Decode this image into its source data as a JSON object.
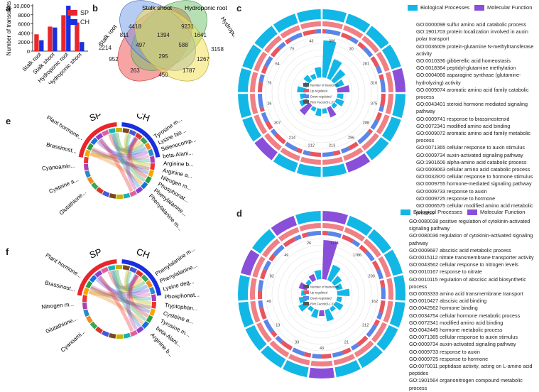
{
  "panels": {
    "a": "a",
    "b": "b",
    "c": "c",
    "d": "d",
    "e": "e",
    "f": "f"
  },
  "chart_data": [
    {
      "type": "bar",
      "panel": "a",
      "ylabel": "Number of transcripts",
      "categories": [
        "Stalk root",
        "Stalk shoot",
        "Hydroponic root",
        "Hydroponic shoot"
      ],
      "series": [
        {
          "name": "SP",
          "color": "#e8262b",
          "values": [
            3700,
            5400,
            7900,
            6300
          ]
        },
        {
          "name": "CH",
          "color": "#1a2fe0",
          "values": [
            2400,
            5200,
            10000,
            2000
          ]
        }
      ],
      "ylim": [
        0,
        10000
      ],
      "yticks": [
        "0",
        "2000",
        "4000",
        "6000",
        "8000",
        "10,000"
      ]
    },
    {
      "type": "venn",
      "panel": "b",
      "sets": [
        "Stalk root",
        "Stalk shoot",
        "Hydroponic root",
        "Hydroponic shoot"
      ],
      "regions": [
        "4418",
        "9231",
        "2214",
        "3158",
        "811",
        "1394",
        "1641",
        "497",
        "588",
        "952",
        "295",
        "1267",
        "263",
        "1787",
        "450"
      ]
    }
  ],
  "panel_c": {
    "legend": {
      "bio": "Biological Processes",
      "mol": "Molecular Function"
    },
    "inner_legend": [
      "Number of transcripts",
      "Up-regulated",
      "Down-regulated",
      "Rich Factor(0-1.0)"
    ],
    "go_terms": [
      "GO:0000098 sulfur amino acid catabolic process",
      "GO:1901703 protein localization involved in auxin polar transport",
      "GO:0036009 protein-glutamine N-methyltransferase activity",
      "GO:0010336 gibberellic acid homeostasis",
      "GO:0018364 peptidyl-glutamine methylation",
      "GO:0004066 asparagine synthase (glutamine-hydrolyzing) activity",
      "GO:0009074 aromatic amino acid family catabolic process",
      "GO:0043401 steroid hormone mediated signaling pathway",
      "GO:0009741 response to brassinosteroid",
      "GO:0072341 modified amino acid binding",
      "GO:0009072 aromatic amino acid family metabolic process",
      "GO:0071365 cellular response to auxin stimulus",
      "GO:0009734 auxin-activated signaling pathway",
      "GO:1901606 alpha-amino acid catabolic process",
      "GO:0009063 cellular amino acid catabolic process",
      "GO:0032870 cellular response to hormone stimulus",
      "GO:0009755 hormone-mediated signaling pathway",
      "GO:0009733 response to auxin",
      "GO:0009725 response to hormone",
      "GO:0006575 cellular modified amino acid metabolic process"
    ],
    "counts": [
      "306",
      "30",
      "281",
      "316",
      "375",
      "288",
      "296",
      "213",
      "212",
      "214",
      "307",
      "26",
      "76",
      "64",
      "75",
      "43"
    ]
  },
  "panel_d": {
    "legend": {
      "bio": "Biological Processes",
      "mol": "Molecular Function"
    },
    "inner_legend": [
      "Number of transcripts",
      "Up-regulated",
      "Down-regulated",
      "Rich Factor(0-1.0)"
    ],
    "go_terms": [
      "GO:0080038 positive regulation of cytokinin-activated signaling pathway",
      "GO:0080036 regulation of cytokinin-activated signaling pathway",
      "GO:0009687 abscisic acid metabolic process",
      "GO:0015112 nitrate transmembrane transporter activity",
      "GO:0043562 cellular response to nitrogen levels",
      "GO:0010167 response to nitrate",
      "GO:0010115 regulation of abscisic acid biosynthetic process",
      "GO:0003333 amino acid transmembrane transport",
      "GO:0010427 abscisic acid binding",
      "GO:0042562 hormone binding",
      "GO:0034754 cellular hormone metabolic process",
      "GO:0072341 modified amino acid binding",
      "GO:0042445 hormone metabolic process",
      "GO:0071365 cellular response to auxin stimulus",
      "GO:0009734 auxin-activated signaling pathway",
      "GO:0009733 response to auxin",
      "GO:0009725 response to hormone",
      "GO:0070011 peptidase activity, acting on L-amino acid peptides",
      "GO:1901564 organonitrogen compound metabolic process"
    ],
    "counts": [
      "1174",
      "1786",
      "200",
      "162",
      "212",
      "21",
      "43",
      "33",
      "13",
      "49",
      "82",
      "49",
      "26"
    ]
  },
  "panel_e": {
    "groups": [
      "SP",
      "CH"
    ],
    "right_labels": [
      "Tyrosine m...",
      "Lysine bio...",
      "Selenocomp...",
      "beta-Alani...",
      "Arginine b...",
      "Arginine a...",
      "Nitrogen m...",
      "Phosphonat...",
      "Phenylalanine...",
      "Phenylalanine m..."
    ],
    "left_labels": [
      "Plant hormone...",
      "Brassinost...",
      "Cyanoamin...",
      "Cysteine a...",
      "Glutathione..."
    ]
  },
  "panel_f": {
    "groups": [
      "SP",
      "CH"
    ],
    "right_labels": [
      "Phenylalanine m...",
      "Phenylalanine...",
      "Lysine deg...",
      "Phosphonat...",
      "Tryptophan...",
      "Cysteine a...",
      "Tyrosine m...",
      "beta-Alani...",
      "Arginine b..."
    ],
    "left_labels": [
      "Plant hormone...",
      "Brassinost...",
      "Nitrogen m...",
      "Glutathione...",
      "Cyanoami..."
    ]
  },
  "colors": {
    "sp_red": "#e8262b",
    "ch_blue": "#1a2fe0",
    "bio_cyan": "#12b7e6",
    "mol_purple": "#8a4fd8",
    "up_red": "#e9555e",
    "down_blue": "#5b86e8"
  }
}
